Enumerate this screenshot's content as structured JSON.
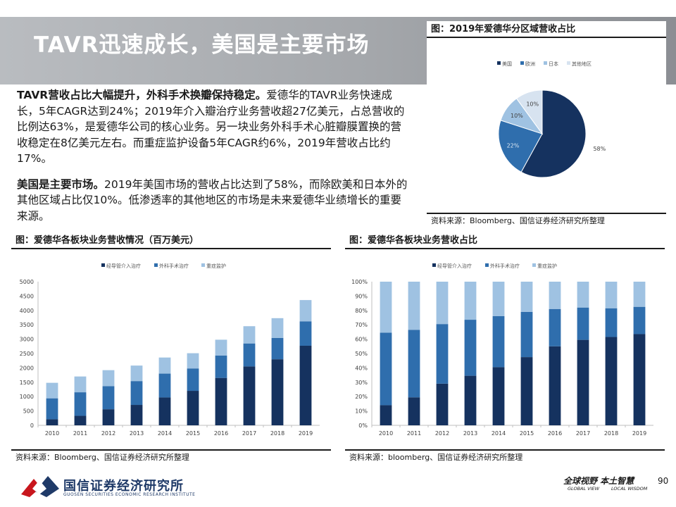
{
  "slide": {
    "title": "TAVR迅速成长，美国是主要市场",
    "page_number": "90"
  },
  "body": {
    "p1_bold": "TAVR营收占比大幅提升，外科手术换瓣保持稳定。",
    "p1_text": "爱德华的TAVR业务快速成长，5年CAGR达到24%；2019年介入瓣治疗业务营收超27亿美元，占总营收的比例达63%，是爱德华公司的核心业务。另一块业务外科手术心脏瓣膜置换的营收稳定在8亿美元左右。而重症监护设备5年CAGR约6%，2019年营收占比约17%。",
    "p2_bold": "美国是主要市场。",
    "p2_text": "2019年美国市场的营收占比达到了58%，而除欧美和日本外的其他区域占比仅10%。低渗透率的其他地区的市场是未来爱德华业绩增长的重要来源。"
  },
  "pie_panel": {
    "header": "图：2019年爱德华分区域营收占比",
    "source": "资料来源：Bloomberg、国信证券经济研究所整理"
  },
  "left_panel": {
    "header": "图：爱德华各板块业务营收情况（百万美元）",
    "source": "资料来源：Bloomberg、国信证券经济研究所整理"
  },
  "right_panel": {
    "header": "图：爱德华各板块业务营收占比",
    "source": "资料来源：bloomberg、国信证券经济研究所整理"
  },
  "footer": {
    "logo_cn": "国信证券经济研究所",
    "logo_en": "GUOSEN SECURITIES ECONOMIC RESEARCH INSTITUTE",
    "slogan_cn": "全球视野 本土智慧",
    "slogan_en_1": "GLOBAL VIEW",
    "slogan_en_2": "LOCAL WISDOM"
  },
  "colors": {
    "dark": "#15325f",
    "mid": "#2f6ead",
    "light": "#9fc2e2",
    "pale": "#d7e3f0"
  },
  "chart_data": [
    {
      "id": "pie",
      "type": "pie",
      "legend_position": "top",
      "labels": [
        "美国",
        "欧洲",
        "日本",
        "其他地区"
      ],
      "values": [
        58,
        22,
        10,
        10
      ],
      "data_labels": [
        "58%",
        "22%",
        "10%",
        "10%"
      ]
    },
    {
      "id": "stacked",
      "type": "bar",
      "stacked": true,
      "legend_position": "top",
      "categories": [
        "2010",
        "2011",
        "2012",
        "2013",
        "2014",
        "2015",
        "2016",
        "2017",
        "2018",
        "2019"
      ],
      "series": [
        {
          "name": "经导管介入治疗",
          "values": [
            210,
            330,
            560,
            710,
            970,
            1200,
            1650,
            2050,
            2300,
            2770
          ]
        },
        {
          "name": "外科手术治疗",
          "values": [
            730,
            820,
            800,
            830,
            830,
            780,
            780,
            800,
            740,
            850
          ]
        },
        {
          "name": "重症监护",
          "values": [
            540,
            550,
            560,
            540,
            560,
            530,
            550,
            600,
            690,
            740
          ]
        }
      ],
      "ylim": [
        0,
        5000
      ],
      "yticks": [
        "0",
        "500",
        "1000",
        "1500",
        "2000",
        "2500",
        "3000",
        "3500",
        "4000",
        "4500",
        "5000"
      ]
    },
    {
      "id": "percent",
      "type": "bar",
      "stacked": true,
      "legend_position": "top",
      "categories": [
        "2010",
        "2011",
        "2012",
        "2013",
        "2014",
        "2015",
        "2016",
        "2017",
        "2018",
        "2019"
      ],
      "series": [
        {
          "name": "经导管介入治疗",
          "values": [
            14,
            19.5,
            29,
            34.5,
            40.5,
            47.5,
            55,
            59.5,
            61.5,
            63.5
          ]
        },
        {
          "name": "外科手术治疗",
          "values": [
            50.5,
            47,
            41.5,
            39,
            35.5,
            31.5,
            26,
            22.5,
            20,
            19
          ]
        },
        {
          "name": "重症监护",
          "values": [
            35.5,
            33.5,
            29.5,
            26.5,
            24,
            21,
            19,
            18,
            18.5,
            17.5
          ]
        }
      ],
      "ylim": [
        0,
        100
      ],
      "yticks": [
        "0%",
        "10%",
        "20%",
        "30%",
        "40%",
        "50%",
        "60%",
        "70%",
        "80%",
        "90%",
        "100%"
      ]
    }
  ]
}
